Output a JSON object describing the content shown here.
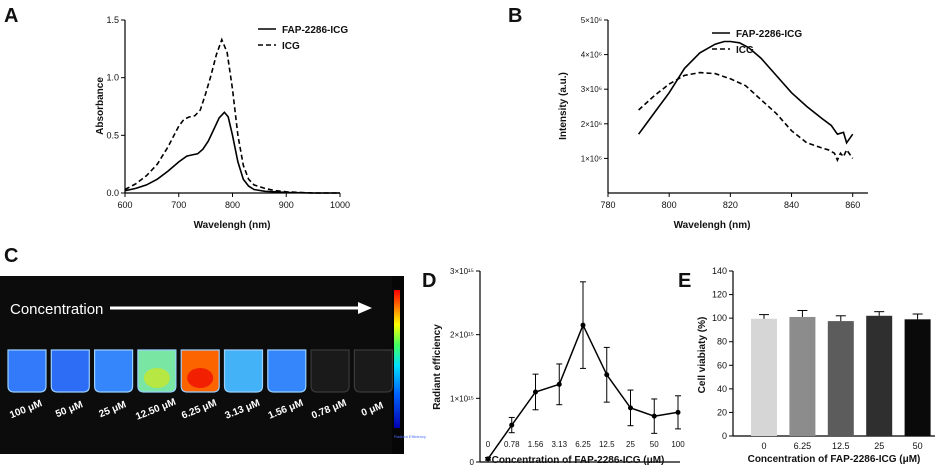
{
  "chart_data": [
    {
      "panel": "A",
      "type": "line",
      "xlabel": "Wavelengh (nm)",
      "ylabel": "Absorbance",
      "xlim": [
        600,
        1000
      ],
      "ylim": [
        0,
        1.5
      ],
      "xticks": [
        "600",
        "700",
        "800",
        "900",
        "1000"
      ],
      "yticks": [
        "0.0",
        "0.5",
        "1.0",
        "1.5"
      ],
      "legend_position": "top-right",
      "series": [
        {
          "name": "FAP-2286-ICG",
          "style": "solid",
          "x": [
            600,
            620,
            640,
            660,
            680,
            700,
            715,
            725,
            735,
            745,
            755,
            765,
            775,
            785,
            792,
            800,
            810,
            820,
            830,
            840,
            860,
            880,
            900,
            950,
            1000
          ],
          "y": [
            0.02,
            0.04,
            0.07,
            0.12,
            0.19,
            0.27,
            0.32,
            0.33,
            0.34,
            0.38,
            0.45,
            0.55,
            0.65,
            0.7,
            0.66,
            0.5,
            0.27,
            0.12,
            0.06,
            0.03,
            0.015,
            0.01,
            0.005,
            0.0,
            0.0
          ]
        },
        {
          "name": "ICG",
          "style": "dashed",
          "x": [
            600,
            620,
            640,
            660,
            680,
            700,
            710,
            720,
            730,
            740,
            750,
            760,
            770,
            780,
            790,
            800,
            810,
            820,
            830,
            840,
            860,
            880,
            900,
            950,
            1000
          ],
          "y": [
            0.03,
            0.08,
            0.15,
            0.25,
            0.4,
            0.58,
            0.64,
            0.66,
            0.67,
            0.72,
            0.86,
            1.02,
            1.2,
            1.33,
            1.22,
            0.9,
            0.5,
            0.24,
            0.12,
            0.07,
            0.04,
            0.02,
            0.01,
            0.0,
            0.0
          ]
        }
      ]
    },
    {
      "panel": "B",
      "type": "line",
      "xlabel": "Wavelengh (nm)",
      "ylabel": "Intensity (a.u.)",
      "xlim": [
        780,
        865
      ],
      "ylim": [
        0,
        5000000
      ],
      "xticks": [
        "780",
        "800",
        "820",
        "840",
        "860"
      ],
      "yticks": [
        "1×10⁶",
        "2×10⁶",
        "3×10⁶",
        "4×10⁶",
        "5×10⁶"
      ],
      "legend_position": "top-right",
      "series": [
        {
          "name": "FAP-2286-ICG",
          "style": "solid",
          "x": [
            790,
            795,
            800,
            805,
            810,
            815,
            818,
            820,
            823,
            826,
            830,
            835,
            840,
            845,
            850,
            853,
            855,
            857,
            858,
            860
          ],
          "y": [
            1700000,
            2300000,
            2900000,
            3600000,
            4050000,
            4300000,
            4380000,
            4380000,
            4340000,
            4200000,
            3900000,
            3400000,
            2900000,
            2500000,
            2150000,
            1950000,
            1700000,
            1750000,
            1450000,
            1700000
          ]
        },
        {
          "name": "ICG",
          "style": "dashed",
          "x": [
            790,
            795,
            800,
            805,
            810,
            815,
            820,
            825,
            830,
            835,
            840,
            845,
            850,
            852,
            854,
            855,
            856,
            857,
            858,
            860
          ],
          "y": [
            2400000,
            2800000,
            3150000,
            3400000,
            3480000,
            3450000,
            3300000,
            3100000,
            2700000,
            2300000,
            1800000,
            1450000,
            1300000,
            1250000,
            1150000,
            950000,
            1150000,
            1050000,
            1250000,
            1000000
          ]
        }
      ]
    },
    {
      "panel": "D",
      "type": "line",
      "xlabel": "Concentration of FAP-2286-ICG (μM)",
      "ylabel": "Radiant efficiency",
      "categories": [
        "0",
        "0.78",
        "1.56",
        "3.13",
        "6.25",
        "12.5",
        "25",
        "50",
        "100"
      ],
      "values": [
        0.05,
        0.58,
        1.1,
        1.22,
        2.15,
        1.37,
        0.85,
        0.72,
        0.78
      ],
      "errors": [
        0.02,
        0.12,
        0.28,
        0.32,
        0.68,
        0.43,
        0.28,
        0.27,
        0.26
      ],
      "value_scale": "×10^15",
      "ylim": [
        0,
        3
      ],
      "yticks": [
        "0",
        "1×10¹⁵",
        "2×10¹⁵",
        "3×10¹⁵"
      ]
    },
    {
      "panel": "E",
      "type": "bar",
      "xlabel": "Concentration of FAP-2286-ICG (μM)",
      "ylabel": "Cell viabiaty (%)",
      "categories": [
        "0",
        "6.25",
        "12.5",
        "25",
        "50"
      ],
      "values": [
        99.5,
        101,
        97.5,
        102,
        99
      ],
      "errors": [
        3.5,
        5.5,
        4.5,
        3.5,
        4.5
      ],
      "bar_colors": [
        "#d6d6d6",
        "#8c8c8c",
        "#5c5c5c",
        "#2f2f2f",
        "#0a0a0a"
      ],
      "ylim": [
        0,
        140
      ],
      "yticks": [
        "0",
        "20",
        "40",
        "60",
        "80",
        "100",
        "120",
        "140"
      ]
    }
  ],
  "panel_letters": {
    "a": "A",
    "b": "B",
    "c": "C",
    "d": "D",
    "e": "E"
  },
  "panel_c": {
    "label": "Concentration",
    "wells": [
      "100 μM",
      "50 μM",
      "25 μM",
      "12.50 μM",
      "6.25 μM",
      "3.13 μM",
      "1.56 μM",
      "0.78 μM",
      "0 μM"
    ],
    "well_intensity": [
      0.26,
      0.22,
      0.3,
      0.62,
      0.92,
      0.42,
      0.3,
      0.0,
      0.0
    ],
    "colorbar_caption": "Radiant Efficiency"
  }
}
